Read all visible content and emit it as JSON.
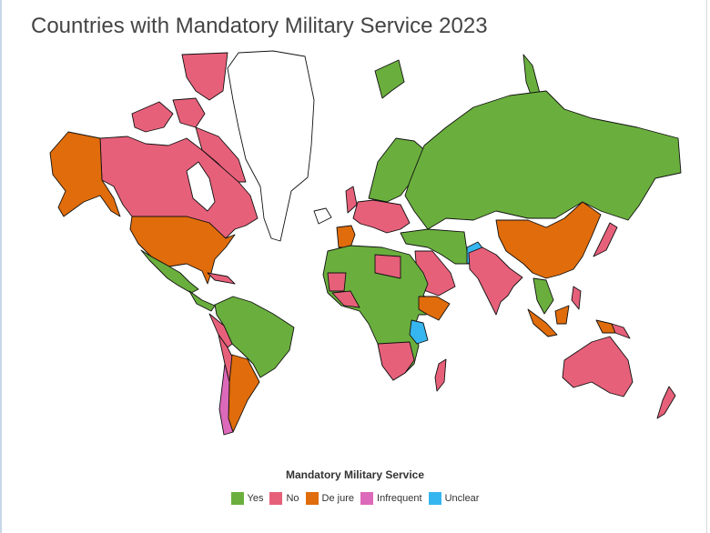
{
  "title": "Countries with Mandatory Military Service 2023",
  "legend": {
    "title": "Mandatory Military Service",
    "items": [
      {
        "label": "Yes",
        "color": "#6aaf3d"
      },
      {
        "label": "No",
        "color": "#e7607a"
      },
      {
        "label": "De jure",
        "color": "#e06c0b"
      },
      {
        "label": "Infrequent",
        "color": "#dc69b9"
      },
      {
        "label": "Unclear",
        "color": "#36b6f0"
      }
    ]
  },
  "colors": {
    "none": "#ffffff"
  }
}
